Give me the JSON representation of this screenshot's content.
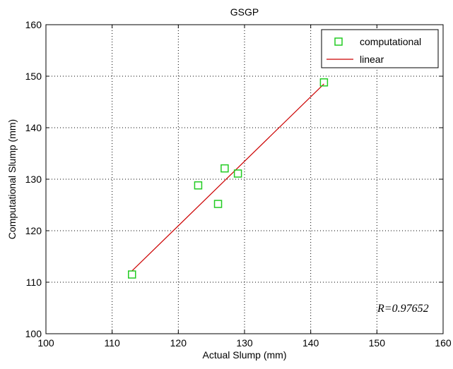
{
  "chart_data": {
    "type": "scatter",
    "title": "GSGP",
    "xlabel": "Actual Slump (mm)",
    "ylabel": "Computational Slump (mm)",
    "xlim": [
      100,
      160
    ],
    "ylim": [
      100,
      160
    ],
    "xticks": [
      100,
      110,
      120,
      130,
      140,
      150,
      160
    ],
    "yticks": [
      100,
      110,
      120,
      130,
      140,
      150,
      160
    ],
    "grid": true,
    "legend_position": "top-right",
    "series": [
      {
        "name": "computational",
        "marker": "square",
        "color": "#22cc22",
        "x": [
          113,
          123,
          126,
          127,
          129,
          142
        ],
        "y": [
          111.5,
          128.8,
          125.2,
          132.1,
          131.1,
          148.8
        ]
      },
      {
        "name": "linear",
        "line": true,
        "color": "#cc0000",
        "x": [
          113,
          142
        ],
        "y": [
          112.2,
          148.5
        ]
      }
    ],
    "annotation": "R=0.97652"
  }
}
